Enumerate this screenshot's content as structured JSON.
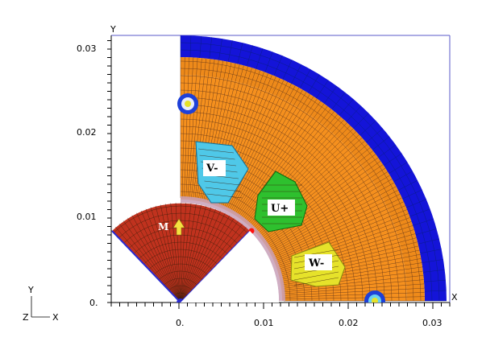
{
  "axes": {
    "y_axis_label": "Y",
    "x_axis_label": "X",
    "x_ticks": [
      "0.",
      "0.01",
      "0.02",
      "0.03"
    ],
    "y_ticks": [
      "0.",
      "0.01",
      "0.02",
      "0.03"
    ]
  },
  "regions": {
    "magnet_label": "M",
    "phase_v_label": "V-",
    "phase_u_label": "U+",
    "phase_w_label": "W-"
  },
  "triad": {
    "y": "Y",
    "z": "Z",
    "x": "X"
  },
  "colors": {
    "stator_outer": "#1414d8",
    "stator_core": "#f5901e",
    "rotor": "#c0321e",
    "coil_v": "#4fc8e8",
    "coil_u": "#2ec02e",
    "coil_w": "#e6e22a",
    "air_gap": "#d9a0c8"
  }
}
